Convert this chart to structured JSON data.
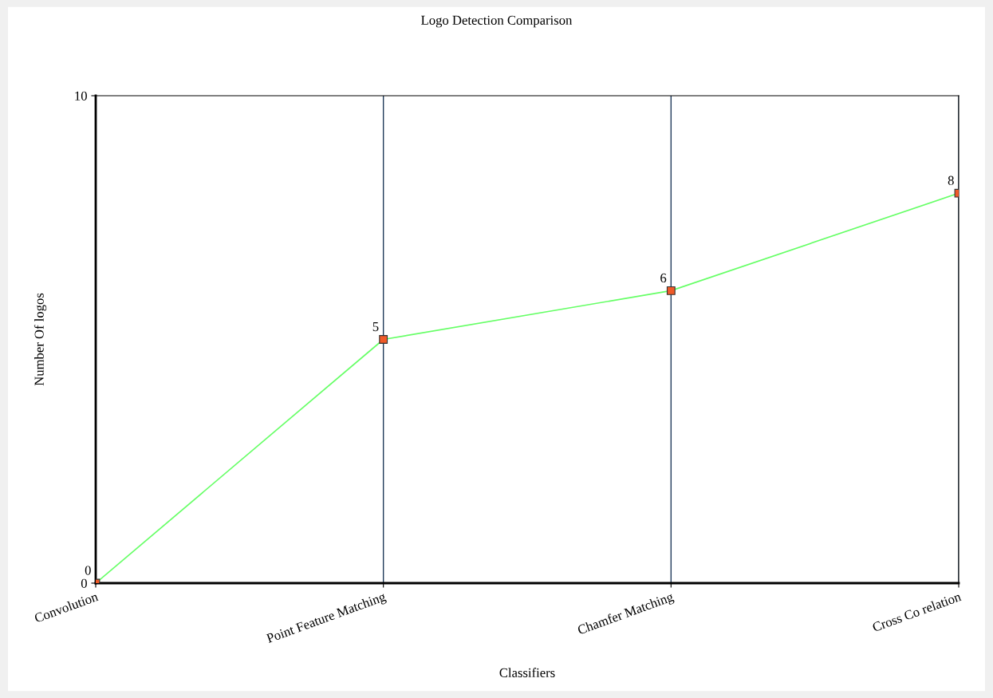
{
  "chart_data": {
    "type": "line",
    "title": "Logo Detection Comparison",
    "xlabel": "Classifiers",
    "ylabel": "Number Of logos",
    "categories": [
      "Convolution",
      "Point Feature Matching",
      "Chamfer Matching",
      "Cross Co relation"
    ],
    "series": [
      {
        "color": "#66ff66",
        "values": [
          0,
          5,
          6,
          8
        ]
      }
    ],
    "ylim": [
      0,
      10
    ],
    "yticks": [
      0,
      10
    ],
    "grid": "x",
    "marker": "square",
    "line_style": "solid",
    "data_labels": true
  }
}
